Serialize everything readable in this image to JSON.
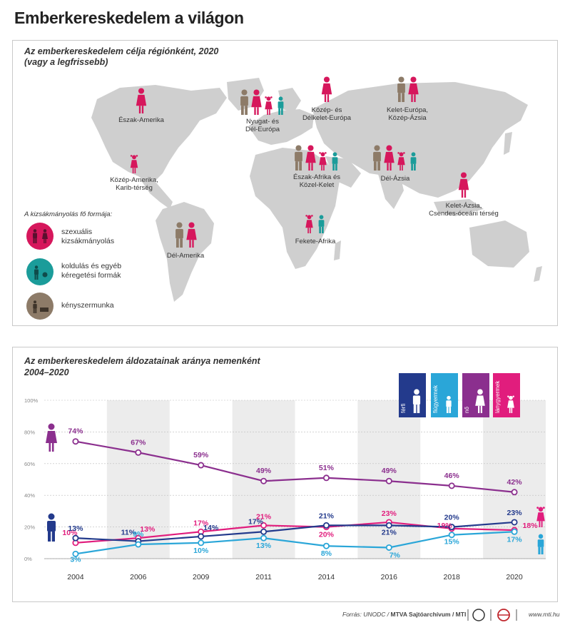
{
  "title": "Emberkereskedelem a világon",
  "map": {
    "title_line1": "Az emberkereskedelem célja régiónként, 2020",
    "title_line2": "(vagy a legfrissebb)",
    "regions": [
      {
        "label": "Észak-Amerika",
        "figures": [
          "woman"
        ]
      },
      {
        "label": "Nyugat- és\nDél-Európa",
        "figures": [
          "man",
          "woman",
          "girl",
          "boy"
        ]
      },
      {
        "label": "Közép- és\nDélkelet-Európa",
        "figures": [
          "woman"
        ]
      },
      {
        "label": "Kelet-Európa,\nKözép-Ázsia",
        "figures": [
          "man",
          "woman"
        ]
      },
      {
        "label": "Közép-Amerika,\nKarib-térség",
        "figures": [
          "girl"
        ]
      },
      {
        "label": "Észak-Afrika és\nKözel-Kelet",
        "figures": [
          "man",
          "woman",
          "girl",
          "boy"
        ]
      },
      {
        "label": "Dél-Ázsia",
        "figures": [
          "man",
          "woman",
          "girl",
          "boy"
        ]
      },
      {
        "label": "Kelet-Ázsia,\nCsendes-óceáni térség",
        "figures": [
          "woman"
        ]
      },
      {
        "label": "Dél-Amerika",
        "figures": [
          "man",
          "woman"
        ]
      },
      {
        "label": "Fekete-Afrika",
        "figures": [
          "girl",
          "boy"
        ]
      }
    ],
    "legend_heading": "A kizsákmányolás fő formája:",
    "legend": [
      {
        "label": "szexuális\nkizsákmányolás",
        "color": "#d6175c",
        "icon": "people-icon"
      },
      {
        "label": "koldulás és egyéb\nkéregetési formák",
        "color": "#1b9c9a",
        "icon": "begging-icon"
      },
      {
        "label": "kényszermunka",
        "color": "#8d7b68",
        "icon": "labour-icon"
      }
    ]
  },
  "chart": {
    "title_line1": "Az emberkereskedelem áldozatainak aránya nemenként",
    "title_line2": "2004–2020"
  },
  "chart_data": {
    "type": "line",
    "x": [
      "2004",
      "2006",
      "2009",
      "2011",
      "2014",
      "2016",
      "2018",
      "2020"
    ],
    "y_ticks": [
      "0%",
      "20%",
      "40%",
      "60%",
      "80%",
      "100%"
    ],
    "ylim": [
      0,
      100
    ],
    "series": [
      {
        "name": "nő",
        "color": "#8b2f8e",
        "values": [
          74,
          67,
          59,
          49,
          51,
          49,
          46,
          42
        ]
      },
      {
        "name": "lánygyermek",
        "color": "#e11d7d",
        "values": [
          10,
          13,
          17,
          21,
          20,
          23,
          19,
          18
        ]
      },
      {
        "name": "férfi",
        "color": "#233a8c",
        "values": [
          13,
          11,
          14,
          17,
          21,
          21,
          20,
          23
        ]
      },
      {
        "name": "fiúgyermek",
        "color": "#2aa6d8",
        "values": [
          3,
          9,
          10,
          13,
          8,
          7,
          15,
          17
        ]
      }
    ]
  },
  "footer": {
    "source_prefix": "Forrás: UNODC / ",
    "source_bold": "MTVA Sajtóarchívum / MTI",
    "url": "www.mti.hu"
  }
}
